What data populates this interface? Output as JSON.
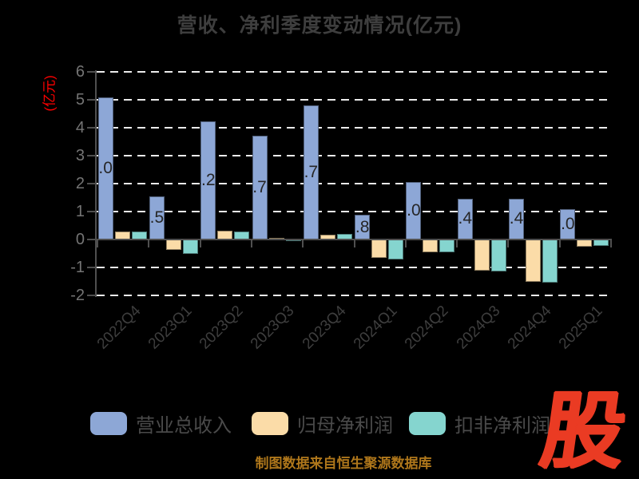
{
  "title": "营收、净利季度变动情况(亿元)",
  "y_axis_unit": "(亿元)",
  "footer": {
    "caption": "制图数据来自恒生聚源数据库",
    "logo_text": "股"
  },
  "colors": {
    "background": "#000000",
    "title_text": "#3e3e3e",
    "axis_line": "#4f4f4f",
    "gridline": "#ececec",
    "tick_label": "#747474",
    "x_label": "#3e3e3e",
    "y_unit_label": "#ff0000",
    "caption_text": "#af771b",
    "logo_red": "#ea3b23",
    "series_blue": "#8da7d6",
    "series_orange": "#fbdca8",
    "series_teal": "#85d5cf"
  },
  "chart_data": {
    "type": "bar",
    "title": "营收、净利季度变动情况(亿元)",
    "xlabel": "",
    "ylabel": "(亿元)",
    "ylim": [
      -2,
      6
    ],
    "yticks": [
      6,
      5,
      4,
      3,
      2,
      1,
      0,
      -1,
      -2
    ],
    "grid": "dashed horizontal, white",
    "legend_position": "bottom",
    "categories": [
      "2022Q4",
      "2023Q1",
      "2023Q2",
      "2023Q3",
      "2023Q4",
      "2024Q1",
      "2024Q2",
      "2024Q3",
      "2024Q4",
      "2025Q1"
    ],
    "series": [
      {
        "name": "营业总收入",
        "color": "#8da7d6",
        "values": [
          5.08,
          1.54,
          4.24,
          3.72,
          4.79,
          0.88,
          2.07,
          1.46,
          1.46,
          1.08
        ],
        "labels": [
          "5.08",
          "1.54",
          "4.24",
          "3.72",
          "4.79",
          "0.88",
          "2.07",
          "1.46",
          "1.46",
          "1.08"
        ]
      },
      {
        "name": "归母净利润",
        "color": "#fbdca8",
        "values": [
          0.29,
          -0.37,
          0.31,
          0.07,
          0.16,
          -0.65,
          -0.47,
          -1.12,
          -1.5,
          -0.25
        ]
      },
      {
        "name": "扣非净利润",
        "color": "#85d5cf",
        "values": [
          0.28,
          -0.5,
          0.3,
          -0.04,
          0.2,
          -0.7,
          -0.45,
          -1.15,
          -1.55,
          -0.22
        ]
      }
    ]
  }
}
